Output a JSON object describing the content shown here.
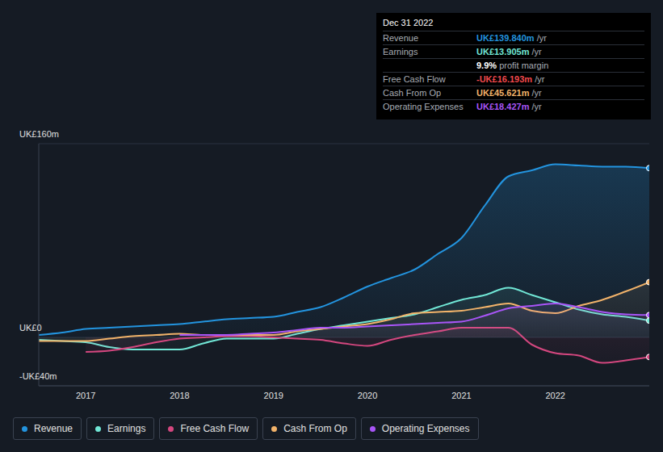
{
  "chart_data": {
    "type": "area",
    "x": [
      2016.5,
      2016.75,
      2017,
      2017.25,
      2017.5,
      2017.75,
      2018,
      2018.25,
      2018.5,
      2018.75,
      2019,
      2019.25,
      2019.5,
      2019.75,
      2020,
      2020.25,
      2020.5,
      2020.75,
      2021,
      2021.25,
      2021.5,
      2021.75,
      2022,
      2022.25,
      2022.5,
      2022.75,
      2023
    ],
    "series": [
      {
        "name": "Revenue",
        "color": "#2394df",
        "values": [
          2,
          4,
          7,
          8,
          9,
          10,
          11,
          13,
          15,
          16,
          17,
          21,
          25,
          33,
          42,
          49,
          56,
          69,
          82,
          109,
          133,
          138,
          143,
          142,
          141,
          141,
          139.84
        ]
      },
      {
        "name": "Earnings",
        "color": "#71e7d6",
        "values": [
          -2,
          -3,
          -4,
          -8,
          -10,
          -10,
          -10,
          -5,
          -1,
          -1,
          -1,
          3,
          7,
          10,
          13,
          16,
          19,
          25,
          31,
          35,
          41,
          35,
          29,
          23,
          19,
          17,
          13.905
        ]
      },
      {
        "name": "Free Cash Flow",
        "color": "#d4477f",
        "values": [
          null,
          null,
          -12,
          -11,
          -8,
          -4,
          -1,
          0,
          1,
          1,
          0,
          -1,
          -2,
          -5,
          -7,
          -2,
          2,
          5,
          8,
          8,
          8,
          -6,
          -13,
          -15,
          -21,
          -19,
          -16.193
        ]
      },
      {
        "name": "Cash From Op",
        "color": "#f2b36a",
        "values": [
          -3,
          -3,
          -3,
          -1,
          1,
          2,
          3,
          2,
          2,
          2,
          2,
          5,
          7,
          9,
          11,
          15,
          20,
          21,
          22,
          25,
          28,
          22,
          20,
          26,
          31,
          38,
          45.621
        ]
      },
      {
        "name": "Operating Expenses",
        "color": "#a855f7",
        "values": [
          null,
          null,
          null,
          null,
          null,
          null,
          2,
          2,
          2,
          3,
          4,
          6,
          8,
          8,
          9,
          10,
          11,
          12,
          13,
          18,
          24,
          26,
          28,
          25,
          21,
          19,
          18.427
        ]
      }
    ],
    "xlim": [
      2016.5,
      2023
    ],
    "xticks": [
      2017,
      2018,
      2019,
      2020,
      2021,
      2022
    ],
    "ylim": [
      -40,
      160
    ],
    "yticks": [
      {
        "value": -40,
        "label": "-UK£40m"
      },
      {
        "value": 0,
        "label": "UK£0"
      },
      {
        "value": 160,
        "label": "UK£160m"
      }
    ],
    "grid": true,
    "legend": "bottom",
    "annotation": {
      "title": "Dec 31 2022",
      "rows": [
        {
          "label": "Revenue",
          "value": "UK£139.840m",
          "unit": "/yr",
          "color": "#2394df"
        },
        {
          "label": "Earnings",
          "value": "UK£13.905m",
          "unit": "/yr",
          "color": "#71e7d6"
        },
        {
          "value": "9.9%",
          "unit": "profit margin",
          "color": "#ffffff"
        },
        {
          "label": "Free Cash Flow",
          "value": "-UK£16.193m",
          "unit": "/yr",
          "color": "#f0494d"
        },
        {
          "label": "Cash From Op",
          "value": "UK£45.621m",
          "unit": "/yr",
          "color": "#f2b36a"
        },
        {
          "label": "Operating Expenses",
          "value": "UK£18.427m",
          "unit": "/yr",
          "color": "#a855f7"
        }
      ]
    }
  }
}
